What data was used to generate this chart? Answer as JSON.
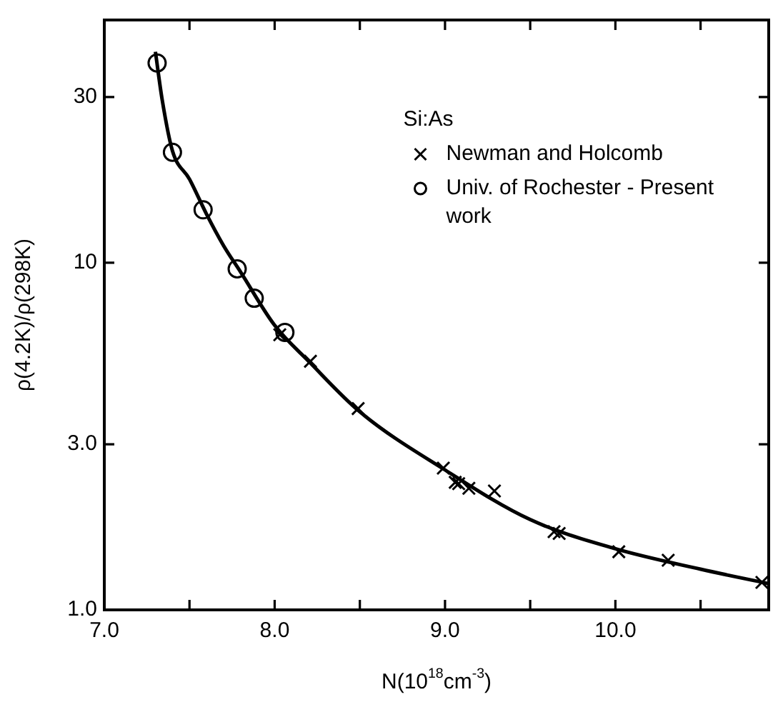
{
  "chart_data": {
    "type": "scatter",
    "xlabel": "N(10$^{18}$cm$^{-3}$)",
    "ylabel": "ρ(4.2K)/ρ(298K)",
    "legend_title": "Si:As",
    "legend": "top right",
    "log": "y",
    "grid": false,
    "xlim": [
      7,
      10.9
    ],
    "xticks": [
      {
        "value": 7,
        "label": "7.0"
      },
      {
        "value": 7.5,
        "label": null
      },
      {
        "value": 8,
        "label": "8.0"
      },
      {
        "value": 8.5,
        "label": null
      },
      {
        "value": 9,
        "label": "9.0"
      },
      {
        "value": 9.5,
        "label": null
      },
      {
        "value": 10,
        "label": "10.0"
      },
      {
        "value": 10.5,
        "label": null
      }
    ],
    "ylim": [
      1,
      50
    ],
    "yticks": [
      {
        "value": 1,
        "label": "1.0"
      },
      {
        "value": 3,
        "label": "3.0"
      },
      10,
      30
    ],
    "series": [
      {
        "type": "line",
        "color": "#000000",
        "marker": "none",
        "x": [
          7.3,
          7.34,
          7.4,
          7.5,
          7.6,
          7.7,
          7.8,
          8.0,
          8.2,
          8.5,
          9.0,
          9.5,
          10.0,
          10.5,
          10.9
        ],
        "values": [
          40.5,
          29.4,
          21,
          17.4,
          13.8,
          11.2,
          9.4,
          6.6,
          5.2,
          3.72,
          2.53,
          1.82,
          1.5,
          1.31,
          1.19
        ]
      },
      {
        "name": "Newman and Holcomb",
        "color": "#000000",
        "marker": "cross",
        "x": [
          8.03,
          8.21,
          8.49,
          8.99,
          9.06,
          9.08,
          9.14,
          9.29,
          9.64,
          9.67,
          10.02,
          10.31,
          10.86
        ],
        "values": [
          6.2,
          5.2,
          3.8,
          2.56,
          2.33,
          2.31,
          2.24,
          2.2,
          1.68,
          1.66,
          1.47,
          1.39,
          1.2
        ]
      },
      {
        "name": "Univ. of Rochester - Present work",
        "color": "#000000",
        "marker": "circle",
        "x": [
          7.31,
          7.4,
          7.58,
          7.78,
          7.88,
          8.06
        ],
        "values": [
          37.6,
          20.8,
          14.2,
          9.6,
          7.9,
          6.3
        ]
      }
    ]
  }
}
